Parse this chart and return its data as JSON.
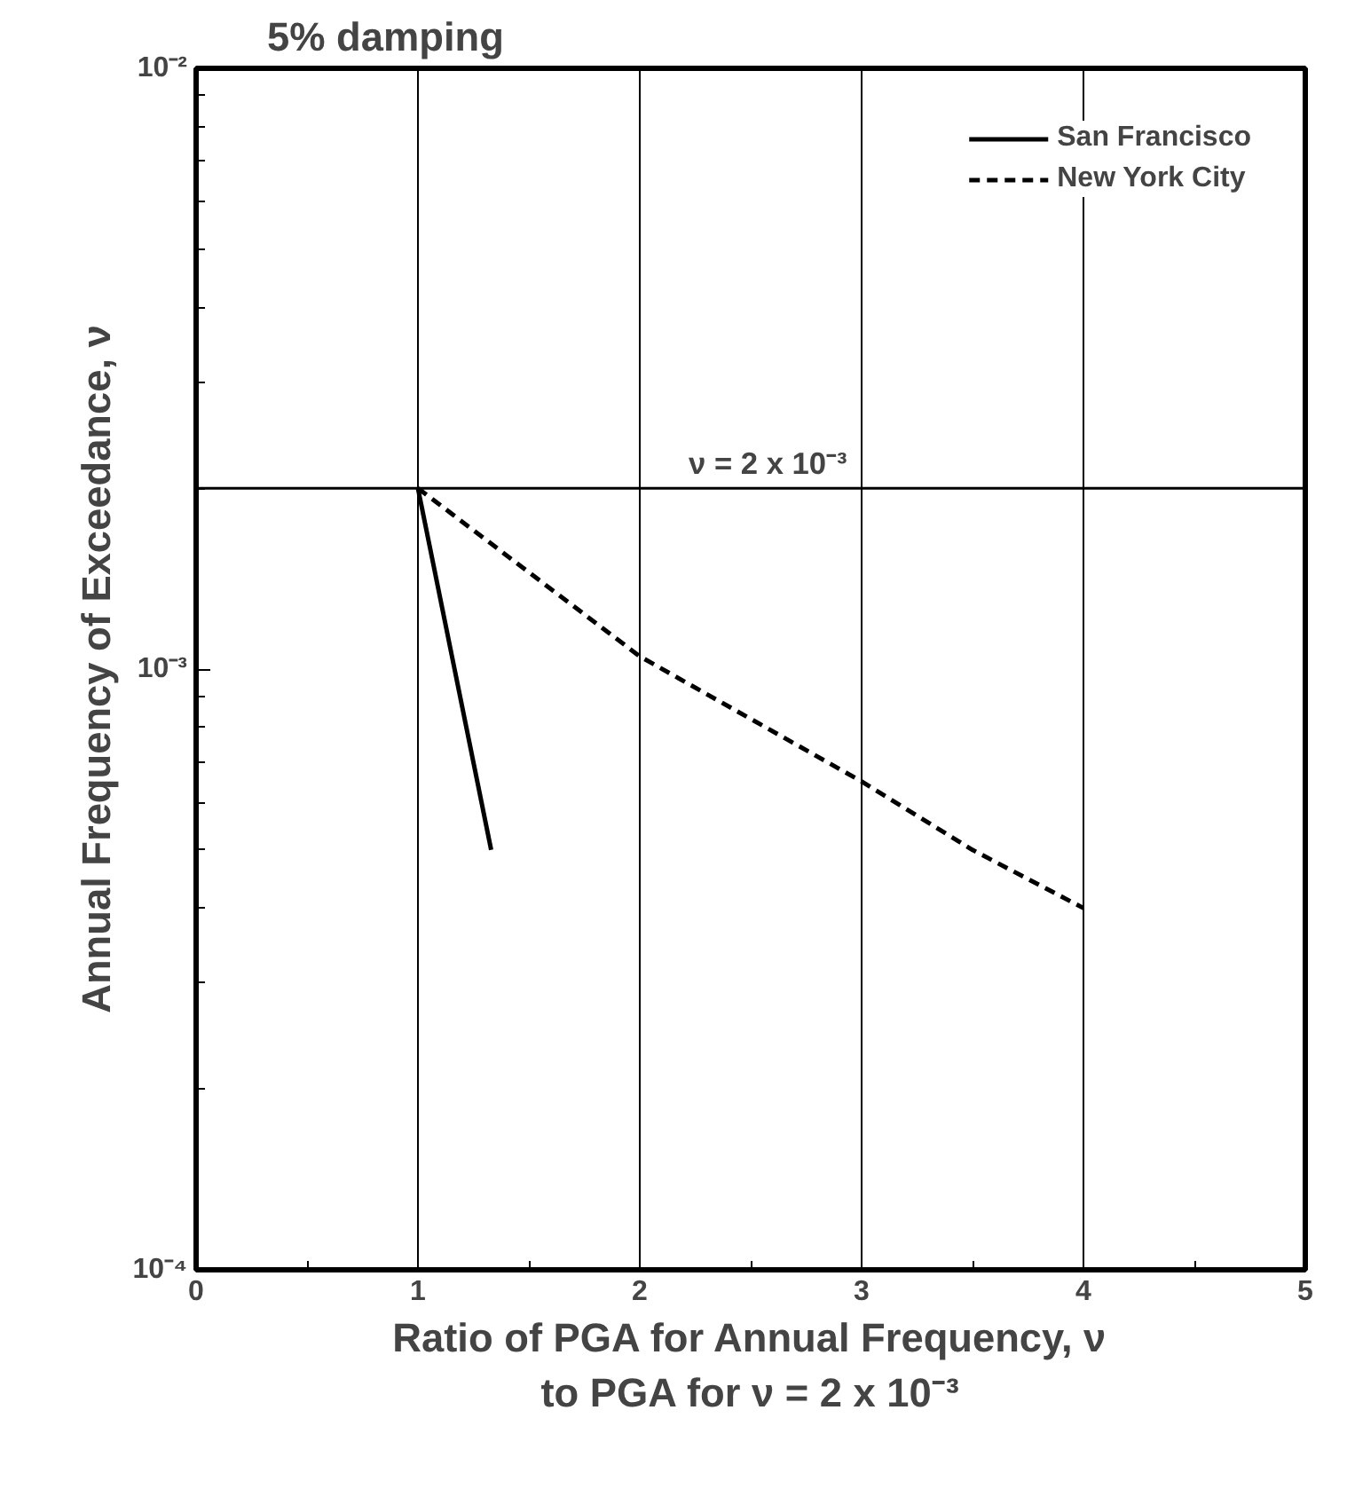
{
  "chart_data": {
    "type": "line",
    "title": "5% damping",
    "xlabel": "Ratio of PGA for Annual Frequency, ν\nto PGA for ν = 2 x 10⁻³",
    "ylabel": "Annual Frequency of Exceedance, ν",
    "log": "y",
    "xlim": [
      0,
      5
    ],
    "ylim": [
      0.0001,
      0.01
    ],
    "xticks": [
      0,
      1,
      2,
      3,
      4,
      5
    ],
    "yticks": [
      {
        "value": 0.0001,
        "label": "10⁻⁴"
      },
      {
        "value": 0.001,
        "label": "10⁻³"
      },
      {
        "value": 0.01,
        "label": "10⁻²"
      }
    ],
    "grid": "x",
    "legend": "top right",
    "ref_lines": [
      {
        "axis": "y",
        "value": 0.002,
        "label": "ν = 2 x 10⁻³",
        "color": "#000000"
      }
    ],
    "series": [
      {
        "name": "San Francisco",
        "color": "#000000",
        "line_style": "solid",
        "x": [
          1,
          1.33
        ],
        "values": [
          0.002,
          0.0005
        ]
      },
      {
        "name": "New York City",
        "color": "#000000",
        "line_style": "dashed",
        "x": [
          1,
          2,
          3,
          3.5,
          4
        ],
        "values": [
          0.002,
          0.00105,
          0.00065,
          0.0005,
          0.0004
        ]
      }
    ]
  }
}
